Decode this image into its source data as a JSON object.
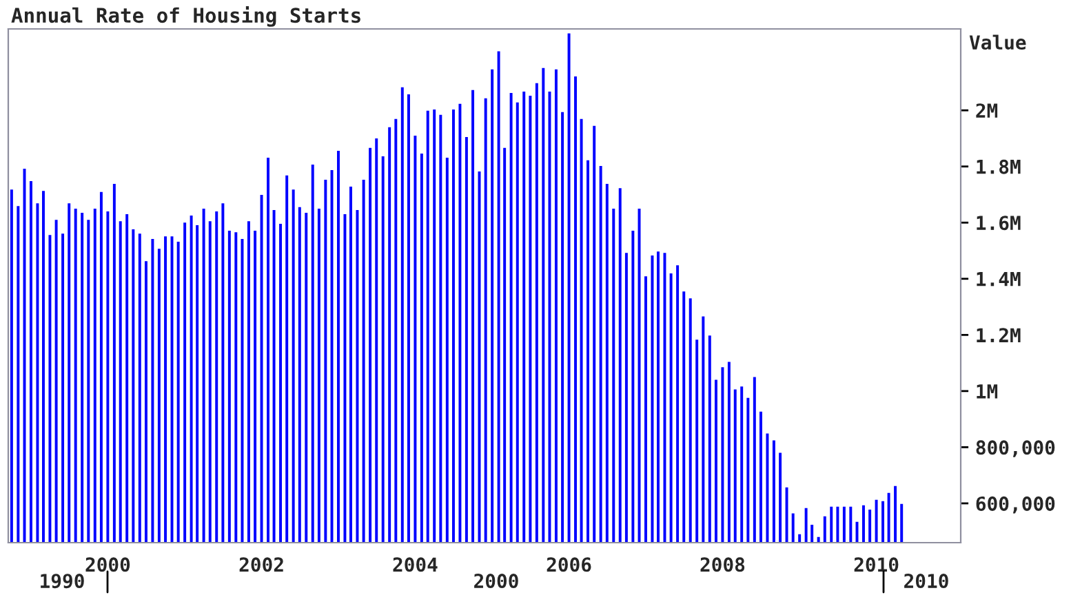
{
  "chart_data": {
    "type": "bar",
    "title": "Annual Rate of Housing Starts",
    "ylabel": "Value",
    "color": "#0000ff",
    "x": [
      "1998-10",
      "1998-11",
      "1998-12",
      "1999-01",
      "1999-02",
      "1999-03",
      "1999-04",
      "1999-05",
      "1999-06",
      "1999-07",
      "1999-08",
      "1999-09",
      "1999-10",
      "1999-11",
      "1999-12",
      "2000-01",
      "2000-02",
      "2000-03",
      "2000-04",
      "2000-05",
      "2000-06",
      "2000-07",
      "2000-08",
      "2000-09",
      "2000-10",
      "2000-11",
      "2000-12",
      "2001-01",
      "2001-02",
      "2001-03",
      "2001-04",
      "2001-05",
      "2001-06",
      "2001-07",
      "2001-08",
      "2001-09",
      "2001-10",
      "2001-11",
      "2001-12",
      "2002-01",
      "2002-02",
      "2002-03",
      "2002-04",
      "2002-05",
      "2002-06",
      "2002-07",
      "2002-08",
      "2002-09",
      "2002-10",
      "2002-11",
      "2002-12",
      "2003-01",
      "2003-02",
      "2003-03",
      "2003-04",
      "2003-05",
      "2003-06",
      "2003-07",
      "2003-08",
      "2003-09",
      "2003-10",
      "2003-11",
      "2003-12",
      "2004-01",
      "2004-02",
      "2004-03",
      "2004-04",
      "2004-05",
      "2004-06",
      "2004-07",
      "2004-08",
      "2004-09",
      "2004-10",
      "2004-11",
      "2004-12",
      "2005-01",
      "2005-02",
      "2005-03",
      "2005-04",
      "2005-05",
      "2005-06",
      "2005-07",
      "2005-08",
      "2005-09",
      "2005-10",
      "2005-11",
      "2005-12",
      "2006-01",
      "2006-02",
      "2006-03",
      "2006-04",
      "2006-05",
      "2006-06",
      "2006-07",
      "2006-08",
      "2006-09",
      "2006-10",
      "2006-11",
      "2006-12",
      "2007-01",
      "2007-02",
      "2007-03",
      "2007-04",
      "2007-05",
      "2007-06",
      "2007-07",
      "2007-08",
      "2007-09",
      "2007-10",
      "2007-11",
      "2007-12",
      "2008-01",
      "2008-02",
      "2008-03",
      "2008-04",
      "2008-05",
      "2008-06",
      "2008-07",
      "2008-08",
      "2008-09",
      "2008-10",
      "2008-11",
      "2008-12",
      "2009-01",
      "2009-02",
      "2009-03",
      "2009-04",
      "2009-05",
      "2009-06",
      "2009-07",
      "2009-08",
      "2009-09",
      "2009-10",
      "2009-11",
      "2009-12",
      "2010-01",
      "2010-02",
      "2010-03",
      "2010-04",
      "2010-05"
    ],
    "values": [
      1718000,
      1659000,
      1792000,
      1748000,
      1669000,
      1713000,
      1556000,
      1610000,
      1561000,
      1669000,
      1650000,
      1635000,
      1610000,
      1650000,
      1709000,
      1640000,
      1738000,
      1605000,
      1630000,
      1576000,
      1561000,
      1463000,
      1542000,
      1507000,
      1551000,
      1551000,
      1532000,
      1600000,
      1625000,
      1591000,
      1650000,
      1605000,
      1640000,
      1669000,
      1571000,
      1566000,
      1542000,
      1605000,
      1571000,
      1699000,
      1831000,
      1645000,
      1596000,
      1768000,
      1718000,
      1655000,
      1635000,
      1807000,
      1650000,
      1753000,
      1787000,
      1856000,
      1630000,
      1728000,
      1645000,
      1753000,
      1866000,
      1900000,
      1836000,
      1940000,
      1969000,
      2082000,
      2057000,
      1910000,
      1846000,
      1999000,
      2003000,
      1984000,
      1831000,
      2003000,
      2023000,
      1905000,
      2072000,
      1782000,
      2043000,
      2146000,
      2210000,
      1866000,
      2062000,
      2028000,
      2067000,
      2052000,
      2097000,
      2151000,
      2067000,
      2146000,
      1994000,
      2274000,
      2121000,
      1969000,
      1822000,
      1945000,
      1802000,
      1738000,
      1650000,
      1723000,
      1492000,
      1571000,
      1650000,
      1409000,
      1483000,
      1497000,
      1492000,
      1419000,
      1448000,
      1355000,
      1330000,
      1183000,
      1266000,
      1198000,
      1040000,
      1085000,
      1104000,
      1006000,
      1016000,
      976000,
      1050000,
      927000,
      849000,
      824000,
      780000,
      657000,
      564000,
      490000,
      583000,
      524000,
      480000,
      554000,
      588000,
      588000,
      588000,
      588000,
      534000,
      593000,
      578000,
      613000,
      608000,
      637000,
      662000,
      598000
    ],
    "xlim": [
      "1998-09-15",
      "2011-02-06"
    ],
    "xticks": [
      "2000",
      "2002",
      "2004",
      "2006",
      "2008",
      "2010"
    ],
    "ylim": [
      460000,
      2290000
    ],
    "yticks": [
      {
        "value": 600000,
        "label": "600,000"
      },
      {
        "value": 800000,
        "label": "800,000"
      },
      {
        "value": 1000000,
        "label": "1M"
      },
      {
        "value": 1200000,
        "label": "1.2M"
      },
      {
        "value": 1400000,
        "label": "1.4M"
      },
      {
        "value": 1600000,
        "label": "1.6M"
      },
      {
        "value": 1800000,
        "label": "1.8M"
      },
      {
        "value": 2000000,
        "label": "2M"
      }
    ],
    "annotations": [
      "1990",
      "2000",
      "2010"
    ]
  }
}
